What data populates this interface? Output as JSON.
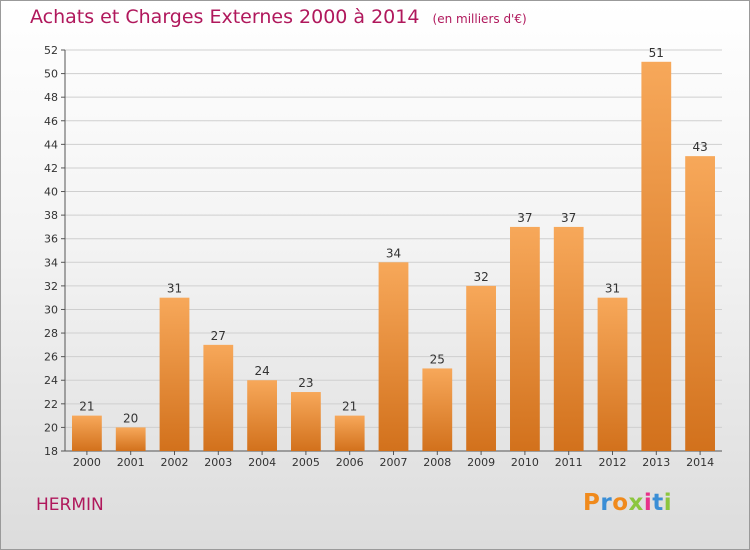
{
  "header": {
    "title": "Achats et Charges Externes 2000 à 2014",
    "unit": "(en milliers d'€)"
  },
  "footer": {
    "commune": "HERMIN",
    "logo_text": "Proxiti",
    "logo_colors": [
      "#f08a1c",
      "#3a8ed6",
      "#f08a1c",
      "#8cc63f",
      "#e8318a",
      "#3a8ed6",
      "#8cc63f"
    ]
  },
  "colors": {
    "title": "#b0185c",
    "bar_light": "#f7a85a",
    "bar_dark": "#d2711c",
    "grid": "#cfcfcf"
  },
  "chart_data": {
    "type": "bar",
    "title": "Achats et Charges Externes 2000 à 2014",
    "subtitle": "(en milliers d'€)",
    "xlabel": "",
    "ylabel": "",
    "categories": [
      "2000",
      "2001",
      "2002",
      "2003",
      "2004",
      "2005",
      "2006",
      "2007",
      "2008",
      "2009",
      "2010",
      "2011",
      "2012",
      "2013",
      "2014"
    ],
    "values": [
      21,
      20,
      31,
      27,
      24,
      23,
      21,
      34,
      25,
      32,
      37,
      37,
      31,
      51,
      43
    ],
    "ylim": [
      18,
      52
    ],
    "yticks": [
      18,
      20,
      22,
      24,
      26,
      28,
      30,
      32,
      34,
      36,
      38,
      40,
      42,
      44,
      46,
      48,
      50,
      52
    ],
    "grid": true,
    "legend": "none"
  }
}
